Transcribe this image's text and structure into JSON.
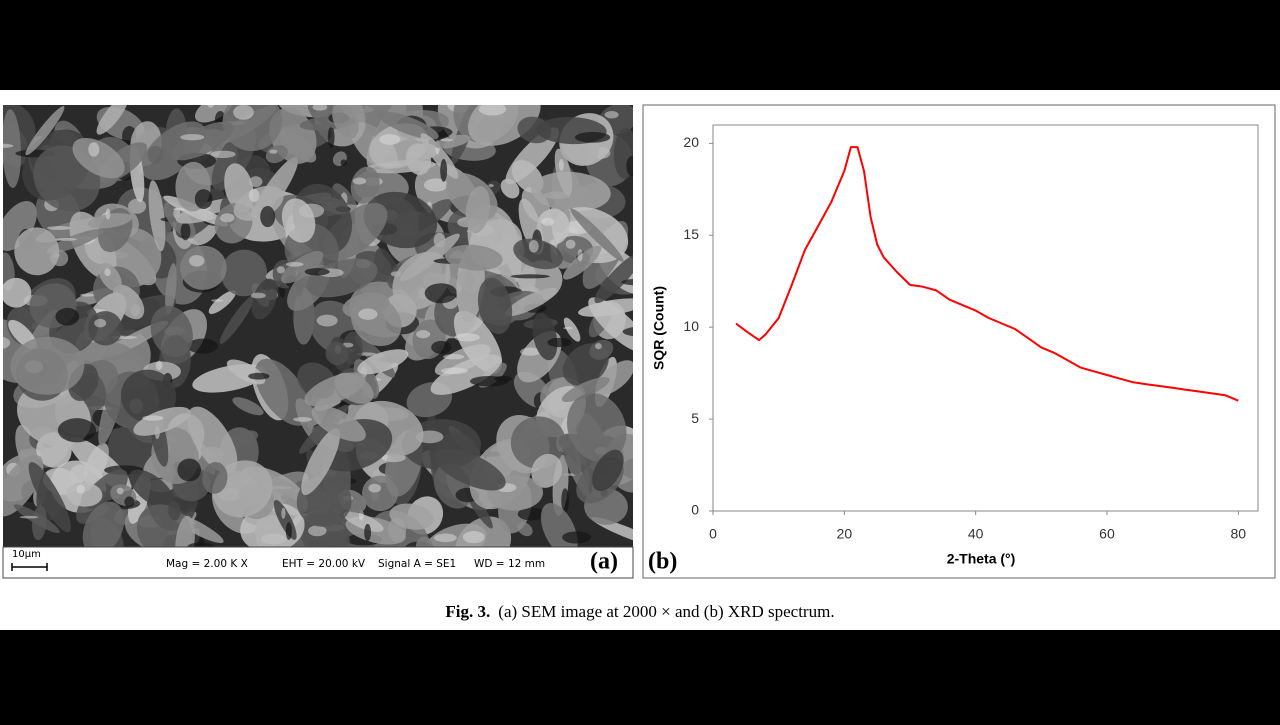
{
  "sem_panel": {
    "scale_label": "10µm",
    "mag": "Mag =  2.00 K X",
    "eht": "EHT = 20.00 kV",
    "signal": "Signal A = SE1",
    "wd": "WD =  12 mm",
    "panel_label": "(a)"
  },
  "chart_data": {
    "type": "line",
    "panel_label": "(b)",
    "xlabel": "2-Theta (°)",
    "ylabel": "SQR (Count)",
    "color": "#ff0000",
    "x": [
      3.5,
      5,
      7,
      8,
      10,
      12,
      14,
      16,
      18,
      20,
      21,
      22,
      23,
      24,
      25,
      26,
      28,
      30,
      32,
      34,
      36,
      38,
      40,
      42,
      44,
      46,
      48,
      50,
      52,
      54,
      56,
      58,
      60,
      62,
      64,
      66,
      68,
      70,
      72,
      74,
      76,
      78,
      80
    ],
    "values": [
      10.2,
      9.8,
      9.3,
      9.6,
      10.5,
      12.3,
      14.2,
      15.5,
      16.8,
      18.5,
      19.8,
      19.8,
      18.5,
      16,
      14.5,
      13.8,
      13,
      12.3,
      12.2,
      12,
      11.5,
      11.2,
      10.9,
      10.5,
      10.2,
      9.9,
      9.4,
      8.9,
      8.6,
      8.2,
      7.8,
      7.6,
      7.4,
      7.2,
      7.0,
      6.9,
      6.8,
      6.7,
      6.6,
      6.5,
      6.4,
      6.3,
      6.0
    ],
    "xlim": [
      0,
      83
    ],
    "ylim": [
      0,
      21
    ],
    "xticks": [
      0,
      20,
      40,
      60,
      80
    ],
    "yticks": [
      0,
      5,
      10,
      15,
      20
    ]
  },
  "caption": {
    "label": "Fig. 3.",
    "text": "(a) SEM image at 2000 × and (b) XRD spectrum."
  }
}
